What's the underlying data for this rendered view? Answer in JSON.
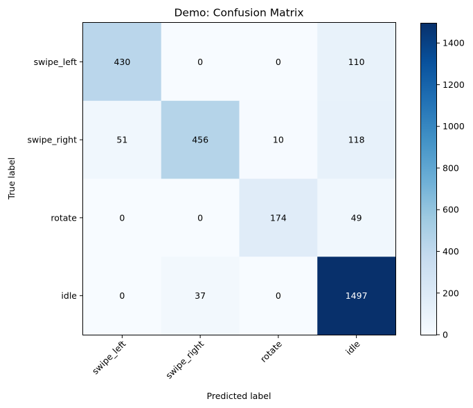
{
  "chart_data": {
    "type": "heatmap",
    "title": "Demo: Confusion Matrix",
    "xlabel": "Predicted label",
    "ylabel": "True label",
    "x_categories": [
      "swipe_left",
      "swipe_right",
      "rotate",
      "idle"
    ],
    "y_categories": [
      "swipe_left",
      "swipe_right",
      "rotate",
      "idle"
    ],
    "values": [
      [
        430,
        0,
        0,
        110
      ],
      [
        51,
        456,
        10,
        118
      ],
      [
        0,
        0,
        174,
        49
      ],
      [
        0,
        37,
        0,
        1497
      ]
    ],
    "colormap": "Blues",
    "colorbar": {
      "range": [
        0,
        1497
      ],
      "ticks": [
        0,
        200,
        400,
        600,
        800,
        1000,
        1200,
        1400
      ]
    },
    "grid": false,
    "x_tick_rotation_deg": 45
  }
}
